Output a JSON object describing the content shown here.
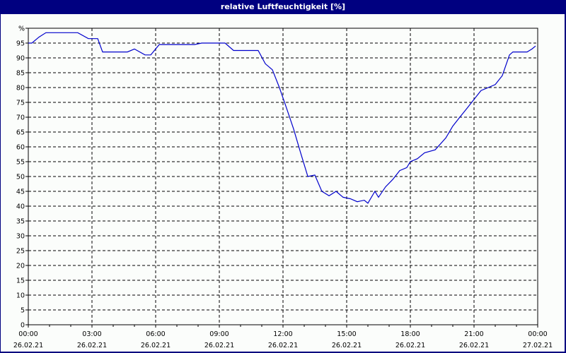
{
  "window": {
    "title": "relative Luftfeuchtigkeit [%]"
  },
  "colors": {
    "titlebar": "#000080",
    "line": "#0000cc",
    "background": "#fbfdfb",
    "grid": "#000000"
  },
  "chart_data": {
    "type": "line",
    "title": "relative Luftfeuchtigkeit [%]",
    "xlabel": "",
    "ylabel": "%",
    "ylim": [
      0,
      100
    ],
    "grid": true,
    "legend": null,
    "y_ticks": [
      "0",
      "5",
      "10",
      "15",
      "20",
      "25",
      "30",
      "35",
      "40",
      "45",
      "50",
      "55",
      "60",
      "65",
      "70",
      "75",
      "80",
      "85",
      "90",
      "95",
      "%"
    ],
    "x_ticks": [
      {
        "time": "00:00",
        "date": "26.02.21"
      },
      {
        "time": "03:00",
        "date": "26.02.21"
      },
      {
        "time": "06:00",
        "date": "26.02.21"
      },
      {
        "time": "09:00",
        "date": "26.02.21"
      },
      {
        "time": "12:00",
        "date": "26.02.21"
      },
      {
        "time": "15:00",
        "date": "26.02.21"
      },
      {
        "time": "18:00",
        "date": "26.02.21"
      },
      {
        "time": "21:00",
        "date": "26.02.21"
      },
      {
        "time": "00:00",
        "date": "27.02.21"
      }
    ],
    "series": [
      {
        "name": "relative Luftfeuchtigkeit",
        "x_hours": [
          0,
          0.17,
          0.5,
          0.83,
          2.33,
          2.83,
          3.27,
          3.5,
          4.67,
          5,
          5.5,
          5.77,
          6.17,
          7.83,
          8.17,
          9.27,
          9.67,
          10.83,
          11.17,
          11.5,
          11.83,
          12.17,
          12.5,
          12.83,
          13.17,
          13.5,
          13.83,
          14.17,
          14.5,
          14.83,
          15.17,
          15.5,
          15.83,
          16,
          16.33,
          16.5,
          16.83,
          17.17,
          17.5,
          17.83,
          18,
          18.33,
          18.67,
          19.17,
          19.67,
          20,
          20.33,
          20.67,
          21,
          21.33,
          21.67,
          22,
          22.33,
          22.67,
          22.83,
          23.5,
          23.73,
          23.9
        ],
        "values": [
          95,
          95,
          97,
          98.5,
          98.5,
          96.5,
          96.5,
          92,
          92,
          93,
          91,
          91,
          94.5,
          94.5,
          95,
          95,
          92.5,
          92.5,
          88,
          86,
          80,
          73,
          66,
          58,
          50,
          50.5,
          45,
          43.5,
          45,
          43,
          42.5,
          41.5,
          42,
          41,
          45,
          43,
          46.5,
          49,
          52,
          53,
          55,
          56,
          58,
          59,
          63,
          67,
          70,
          73,
          76,
          79,
          80,
          81,
          84,
          91,
          92,
          92,
          93,
          94
        ]
      }
    ]
  }
}
